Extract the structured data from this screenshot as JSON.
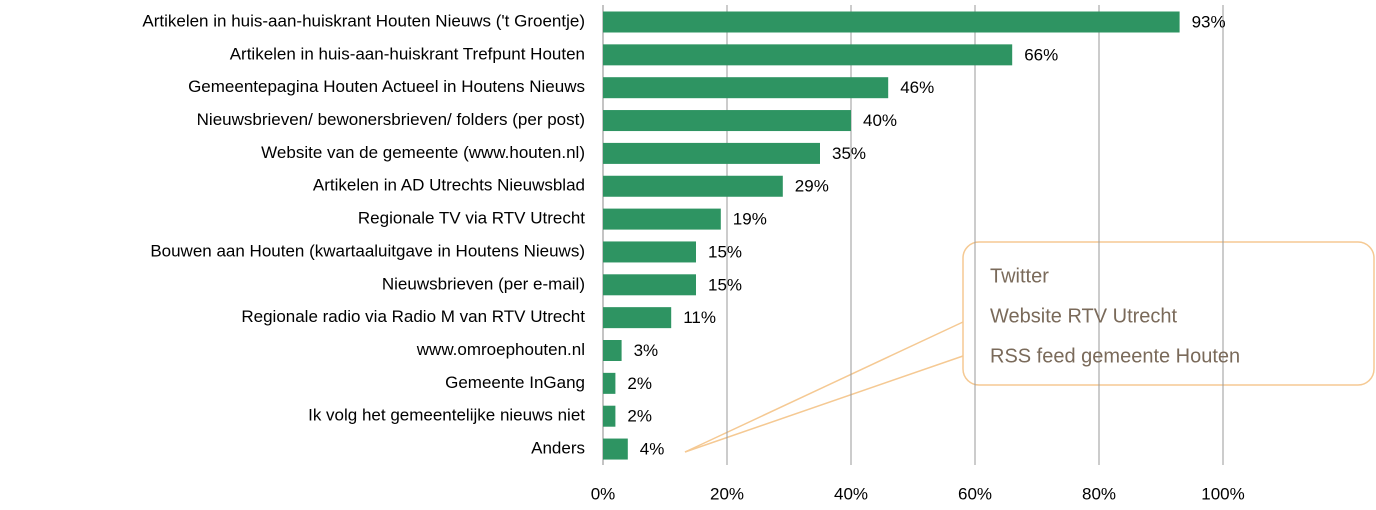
{
  "chart_data": {
    "type": "bar",
    "orientation": "horizontal",
    "categories": [
      "Artikelen in huis-aan-huiskrant Houten Nieuws ('t Groentje)",
      "Artikelen in huis-aan-huiskrant Trefpunt Houten",
      "Gemeentepagina Houten Actueel in Houtens Nieuws",
      "Nieuwsbrieven/ bewonersbrieven/ folders (per post)",
      "Website van de gemeente (www.houten.nl)",
      "Artikelen in AD Utrechts Nieuwsblad",
      "Regionale TV via  RTV Utrecht",
      "Bouwen aan Houten (kwartaaluitgave in Houtens Nieuws)",
      "Nieuwsbrieven (per e-mail)",
      "Regionale radio via Radio M van RTV Utrecht",
      "www.omroephouten.nl",
      "Gemeente InGang",
      "Ik volg het gemeentelijke nieuws niet",
      "Anders"
    ],
    "values": [
      93,
      66,
      46,
      40,
      35,
      29,
      19,
      15,
      15,
      11,
      3,
      2,
      2,
      4
    ],
    "value_labels": [
      "93%",
      "66%",
      "46%",
      "40%",
      "35%",
      "29%",
      "19%",
      "15%",
      "15%",
      "11%",
      "3%",
      "2%",
      "2%",
      "4%"
    ],
    "color": "#2e9462",
    "xlim": [
      0,
      100
    ],
    "xticks": [
      {
        "value": 0,
        "label": "0%"
      },
      {
        "value": 20,
        "label": "20%"
      },
      {
        "value": 40,
        "label": "40%"
      },
      {
        "value": 60,
        "label": "60%"
      },
      {
        "value": 80,
        "label": "80%"
      },
      {
        "value": 100,
        "label": "100%"
      }
    ],
    "grid": true,
    "annotation": [
      "Twitter",
      "Website RTV Utrecht",
      "RSS feed gemeente Houten"
    ]
  }
}
